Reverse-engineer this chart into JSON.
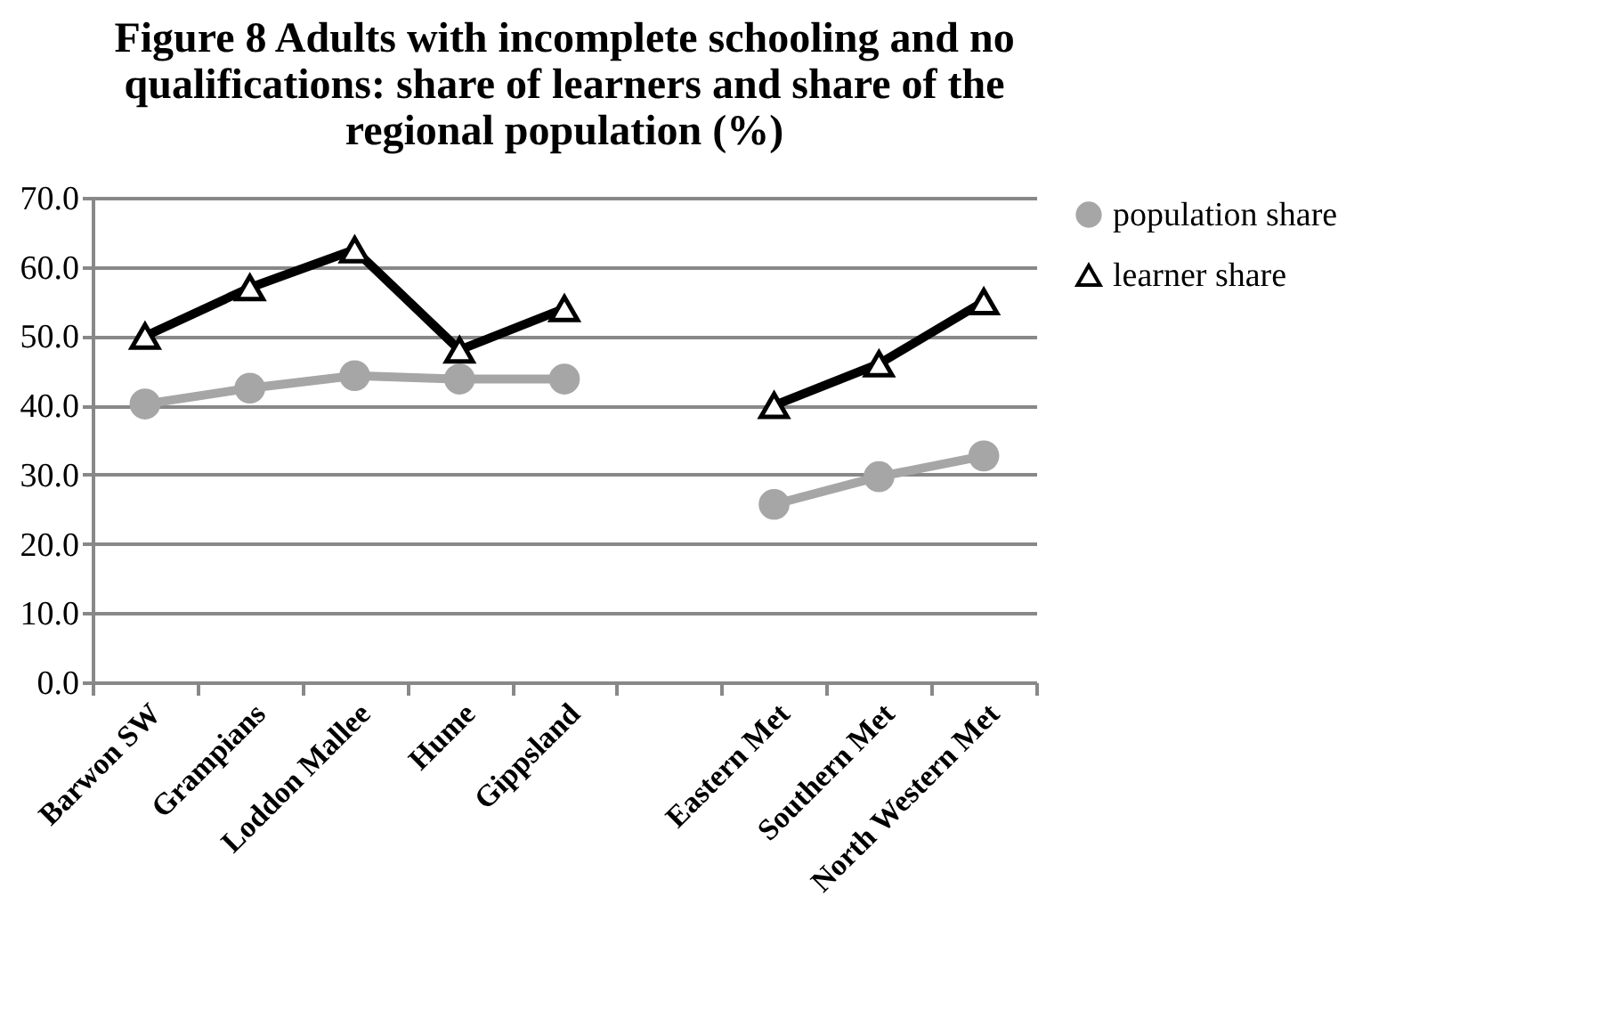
{
  "chart_data": {
    "type": "line",
    "title": "Figure 8  Adults with incomplete schooling and no qualifications: share of learners and share of the regional population (%)",
    "categories": [
      "Barwon SW",
      "Grampians",
      "Loddon Mallee",
      "Hume",
      "Gippsland",
      null,
      "Eastern Met",
      "Southern Met",
      "North Western Met"
    ],
    "series": [
      {
        "name": "population share",
        "color": "#a6a6a6",
        "marker": "circle",
        "values": [
          40.2,
          42.5,
          44.3,
          43.8,
          43.8,
          null,
          25.7,
          29.7,
          32.7
        ]
      },
      {
        "name": "learner share",
        "color": "#000000",
        "marker": "triangle",
        "values": [
          50.0,
          57.0,
          62.5,
          48.0,
          54.0,
          null,
          40.0,
          46.0,
          55.0
        ]
      }
    ],
    "ylim": [
      0,
      70
    ],
    "yticks": [
      {
        "value": 0,
        "label": "0.0"
      },
      {
        "value": 10,
        "label": "10.0"
      },
      {
        "value": 20,
        "label": "20.0"
      },
      {
        "value": 30,
        "label": "30.0"
      },
      {
        "value": 40,
        "label": "40.0"
      },
      {
        "value": 50,
        "label": "50.0"
      },
      {
        "value": 60,
        "label": "60.0"
      },
      {
        "value": 70,
        "label": "70.0"
      }
    ],
    "grid": "y",
    "legend": "right"
  }
}
